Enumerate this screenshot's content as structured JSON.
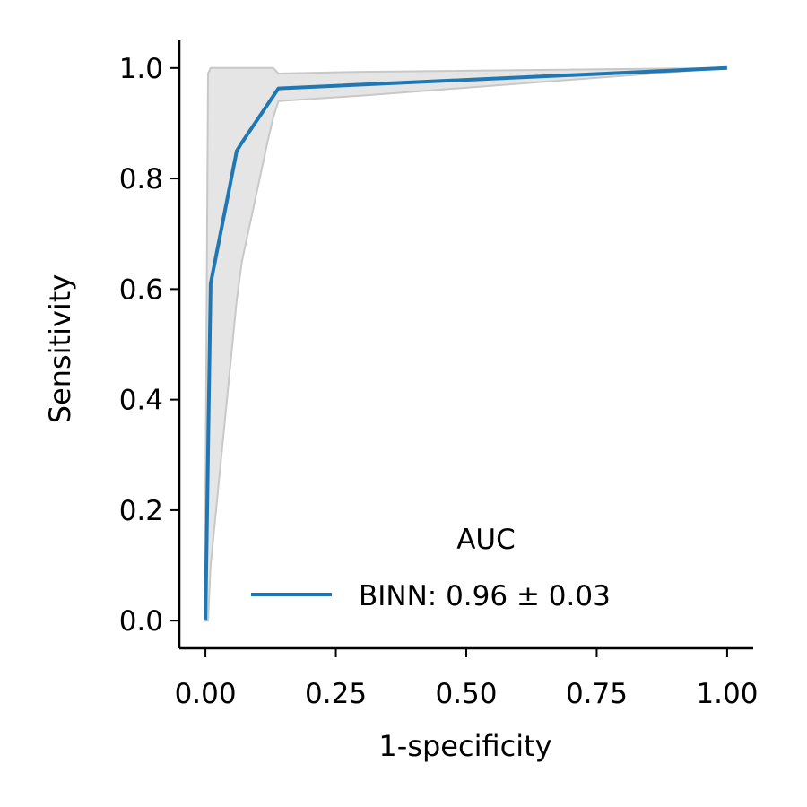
{
  "chart_data": {
    "type": "line",
    "title": "",
    "xlabel": "1-specificity",
    "ylabel": "Sensitivity",
    "xlim": [
      -0.05,
      1.05
    ],
    "ylim": [
      -0.05,
      1.05
    ],
    "xticks": [
      0.0,
      0.25,
      0.5,
      0.75,
      1.0
    ],
    "xtick_labels": [
      "0.00",
      "0.25",
      "0.50",
      "0.75",
      "1.00"
    ],
    "yticks": [
      0.0,
      0.2,
      0.4,
      0.6,
      0.8,
      1.0
    ],
    "ytick_labels": [
      "0.0",
      "0.2",
      "0.4",
      "0.6",
      "0.8",
      "1.0"
    ],
    "grid": false,
    "legend": {
      "title": "AUC",
      "placement": "lower-right",
      "entries": [
        "BINN:  0.96 ±  0.03"
      ]
    },
    "series": [
      {
        "name": "BINN:  0.96 ±  0.03",
        "color": "#1f77b4",
        "x": [
          0.0,
          0.0,
          0.01,
          0.06,
          0.07,
          0.14,
          1.0
        ],
        "y": [
          0.0,
          0.0,
          0.61,
          0.85,
          0.865,
          0.963,
          1.0
        ]
      }
    ],
    "band": {
      "color": "#d3d3d3",
      "x": [
        0.0,
        0.005,
        0.01,
        0.06,
        0.07,
        0.12,
        0.13,
        0.14,
        0.3,
        1.0
      ],
      "upper": [
        0.22,
        0.99,
        1.0,
        1.0,
        1.0,
        1.0,
        1.0,
        0.99,
        0.993,
        1.0
      ],
      "lower": [
        0.0,
        0.0,
        0.1,
        0.58,
        0.65,
        0.87,
        0.91,
        0.94,
        0.95,
        1.0
      ]
    }
  }
}
